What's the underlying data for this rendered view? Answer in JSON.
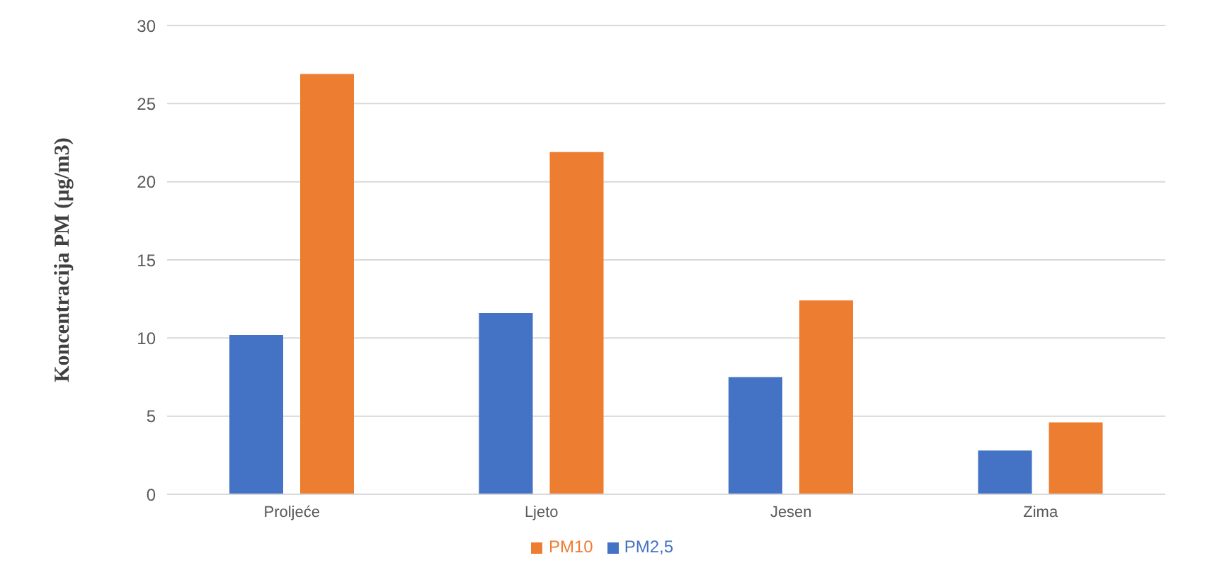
{
  "chart_data": {
    "type": "bar",
    "ylabel": "Koncentracija  PM (µg/m3)",
    "categories": [
      "Proljeće",
      "Ljeto",
      "Jesen",
      "Zima"
    ],
    "series": [
      {
        "name": "PM2,5",
        "color": "#4472c4",
        "values": [
          10.2,
          11.6,
          7.5,
          2.8
        ]
      },
      {
        "name": "PM10",
        "color": "#ed7d31",
        "values": [
          26.9,
          21.9,
          12.4,
          4.6
        ]
      }
    ],
    "ylim": [
      0,
      30
    ],
    "yticks": [
      0,
      5,
      10,
      15,
      20,
      25,
      30
    ],
    "grid": "y",
    "legend": "bottom"
  }
}
